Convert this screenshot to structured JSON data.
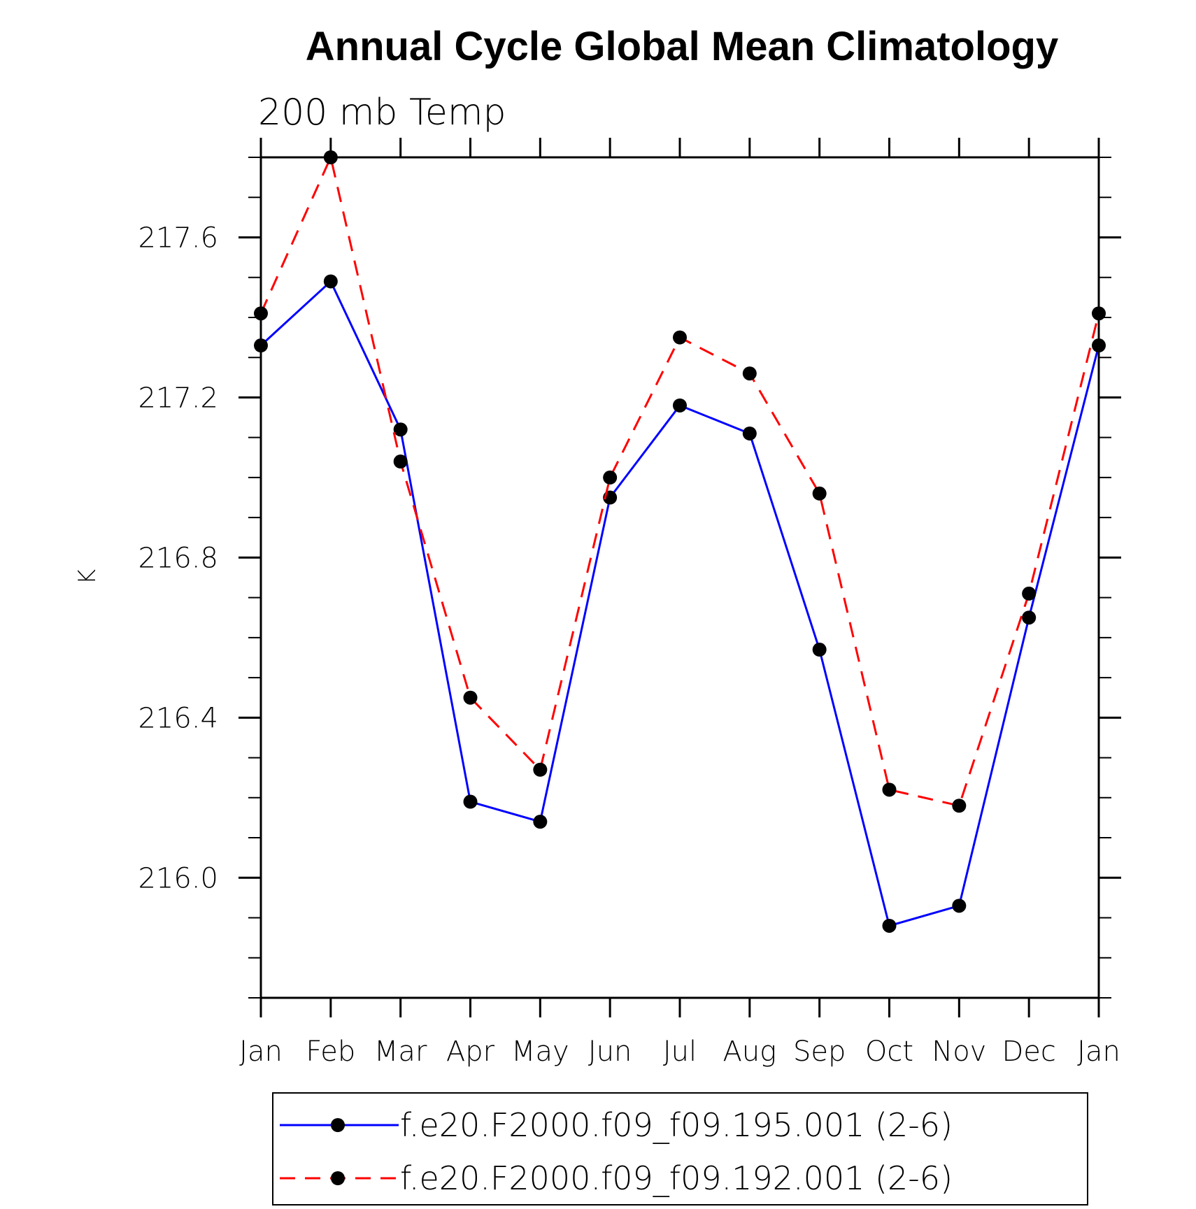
{
  "chart_data": {
    "type": "line",
    "title": "Annual Cycle Global Mean Climatology",
    "subtitle": "200 mb Temp",
    "ylabel": "K",
    "xlabel": "",
    "categories": [
      "Jan",
      "Feb",
      "Mar",
      "Apr",
      "May",
      "Jun",
      "Jul",
      "Aug",
      "Sep",
      "Oct",
      "Nov",
      "Dec",
      "Jan"
    ],
    "ylim": [
      215.7,
      217.8
    ],
    "yticks": [
      "216.0",
      "216.4",
      "216.8",
      "217.2",
      "217.6"
    ],
    "grid": false,
    "legend_position": "bottom",
    "series": [
      {
        "name": "f.e20.F2000.f09_f09.195.001 (2-6)",
        "color": "#0000ff",
        "line_style": "solid",
        "marker": "filled-circle",
        "values": [
          217.33,
          217.49,
          217.12,
          216.19,
          216.14,
          216.95,
          217.18,
          217.11,
          216.57,
          215.88,
          215.93,
          216.65,
          217.33
        ]
      },
      {
        "name": "f.e20.F2000.f09_f09.192.001 (2-6)",
        "color": "#ff0000",
        "line_style": "dashed",
        "marker": "filled-circle",
        "values": [
          217.41,
          217.8,
          217.04,
          216.45,
          216.27,
          217.0,
          217.35,
          217.26,
          216.96,
          216.22,
          216.18,
          216.71,
          217.41
        ]
      }
    ]
  }
}
